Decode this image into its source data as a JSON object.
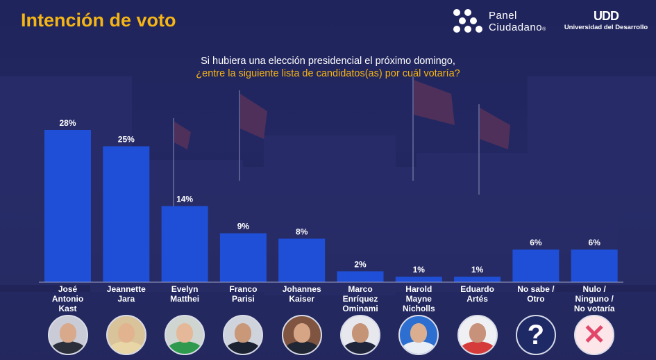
{
  "header": {
    "title": "Intención de voto",
    "logo_panel_line1": "Panel",
    "logo_panel_line2": "Ciudadano",
    "logo_panel_reg": "®",
    "logo_udd_mark": "UDD",
    "logo_udd_name": "Universidad del Desarrollo"
  },
  "question": {
    "line1": "Si hubiera una elección presidencial el próximo domingo,",
    "line2": "¿entre la siguiente lista de candidatos(as) por cuál votaría?"
  },
  "colors": {
    "accent": "#f5b514",
    "bar": "#1f4fd6",
    "background": "#1f2456",
    "axis": "#9aa0c8"
  },
  "photos": [
    {
      "name": "José Antonio Kast",
      "icon": "person-photo",
      "bg": "#c9ccd6",
      "skin": "#d8a98a",
      "cloth": "#2b2f3c"
    },
    {
      "name": "Jeannette Jara",
      "icon": "person-photo",
      "bg": "#d9c39a",
      "skin": "#e1b48f",
      "cloth": "#e9d6a6"
    },
    {
      "name": "Evelyn Matthei",
      "icon": "person-photo",
      "bg": "#cfd6d1",
      "skin": "#e4b898",
      "cloth": "#2f9a4e"
    },
    {
      "name": "Franco Parisi",
      "icon": "person-photo",
      "bg": "#cfd3dc",
      "skin": "#c99878",
      "cloth": "#1d2233"
    },
    {
      "name": "Johannes Kaiser",
      "icon": "person-photo",
      "bg": "#7f5440",
      "skin": "#d6a586",
      "cloth": "#202634"
    },
    {
      "name": "Marco Enríquez Ominami",
      "icon": "person-photo",
      "bg": "#e6e8ee",
      "skin": "#c59476",
      "cloth": "#20243a"
    },
    {
      "name": "Harold Mayne Nicholls",
      "icon": "person-photo",
      "bg": "#2c6fd1",
      "skin": "#dcae90",
      "cloth": "#e9eef6"
    },
    {
      "name": "Eduardo Artés",
      "icon": "person-photo",
      "bg": "#eef0f4",
      "skin": "#c8917a",
      "cloth": "#d63b3b"
    },
    {
      "name": "No sabe / Otro",
      "icon": "question-mark-icon",
      "glyph": "?",
      "bg": "#1e2a66",
      "color": "#ffffff"
    },
    {
      "name": "Nulo / Ninguno / No votaría",
      "icon": "cross-icon",
      "glyph": "✕",
      "bg": "#fde6ea",
      "color": "#e2476a"
    }
  ],
  "chart_data": {
    "type": "bar",
    "title": "Intención de voto",
    "categories": [
      "José Antonio Kast",
      "Jeannette Jara",
      "Evelyn Matthei",
      "Franco Parisi",
      "Johannes Kaiser",
      "Marco Enríquez Ominami",
      "Harold Mayne Nicholls",
      "Eduardo Artés",
      "No sabe / Otro",
      "Nulo / Ninguno / No votaría"
    ],
    "category_lines": [
      [
        "José",
        "Antonio",
        "Kast"
      ],
      [
        "Jeannette",
        "Jara"
      ],
      [
        "Evelyn",
        "Matthei"
      ],
      [
        "Franco",
        "Parisi"
      ],
      [
        "Johannes",
        "Kaiser"
      ],
      [
        "Marco",
        "Enríquez",
        "Ominami"
      ],
      [
        "Harold",
        "Mayne",
        "Nicholls"
      ],
      [
        "Eduardo",
        "Artés"
      ],
      [
        "No sabe /",
        "Otro"
      ],
      [
        "Nulo /",
        "Ninguno /",
        "No votaría"
      ]
    ],
    "values": [
      28,
      25,
      14,
      9,
      8,
      2,
      1,
      1,
      6,
      6
    ],
    "labels": [
      "28%",
      "25%",
      "14%",
      "9%",
      "8%",
      "2%",
      "1%",
      "1%",
      "6%",
      "6%"
    ],
    "unit": "%",
    "ylim": [
      0,
      28
    ],
    "xlabel": "",
    "ylabel": "",
    "grid": false,
    "legend": "none"
  }
}
